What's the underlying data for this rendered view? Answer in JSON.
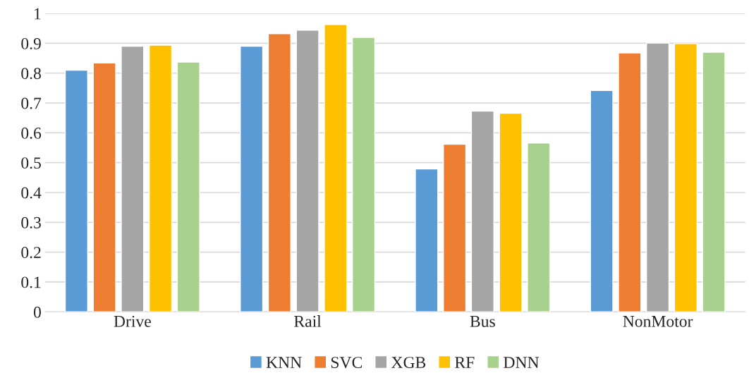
{
  "chart_data": {
    "type": "bar",
    "categories": [
      "Drive",
      "Rail",
      "Bus",
      "NonMotor"
    ],
    "series": [
      {
        "name": "KNN",
        "color": "#5b9bd5",
        "values": [
          0.81,
          0.89,
          0.479,
          0.742
        ]
      },
      {
        "name": "SVC",
        "color": "#ed7d31",
        "values": [
          0.834,
          0.932,
          0.562,
          0.868
        ]
      },
      {
        "name": "XGB",
        "color": "#a5a5a5",
        "values": [
          0.89,
          0.944,
          0.673,
          0.901
        ]
      },
      {
        "name": "RF",
        "color": "#ffc000",
        "values": [
          0.894,
          0.963,
          0.666,
          0.899
        ]
      },
      {
        "name": "DNN",
        "color": "#a9d18e",
        "values": [
          0.837,
          0.92,
          0.566,
          0.87
        ]
      }
    ],
    "ylim": [
      0,
      1
    ],
    "yticks": [
      0,
      0.1,
      0.2,
      0.3,
      0.4,
      0.5,
      0.6,
      0.7,
      0.8,
      0.9,
      1
    ],
    "grid": "y",
    "legend": "bottom"
  }
}
